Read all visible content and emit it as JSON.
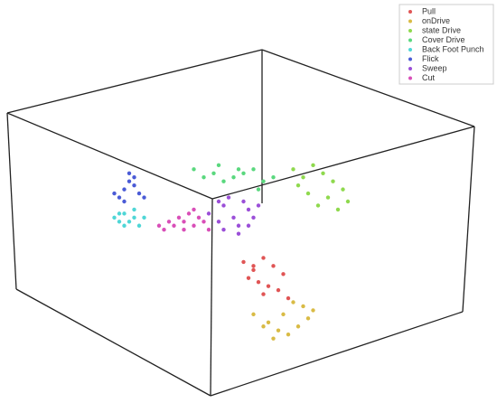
{
  "chart_data": {
    "type": "scatter3d",
    "xlim": [
      0,
      100
    ],
    "ylim": [
      0,
      100
    ],
    "legend": "top-right",
    "series": [
      {
        "name": "Pull",
        "color": "#e05555",
        "x": [
          49,
          51,
          53,
          55,
          57,
          52,
          54,
          50,
          56,
          58,
          53,
          51
        ],
        "y": [
          35,
          33,
          36,
          34,
          32,
          30,
          29,
          31,
          28,
          26,
          27,
          34
        ]
      },
      {
        "name": "onDrive",
        "color": "#d9bb45",
        "x": [
          51,
          53,
          56,
          58,
          60,
          62,
          63,
          59,
          55,
          57,
          61,
          54
        ],
        "y": [
          22,
          19,
          18,
          17,
          19,
          21,
          23,
          25,
          16,
          22,
          24,
          20
        ]
      },
      {
        "name": "state Drive",
        "color": "#8fd94e",
        "x": [
          59,
          61,
          63,
          65,
          67,
          69,
          70,
          62,
          64,
          66,
          68,
          60
        ],
        "y": [
          58,
          56,
          59,
          57,
          55,
          53,
          50,
          52,
          49,
          51,
          48,
          54
        ]
      },
      {
        "name": "Cover Drive",
        "color": "#5ad87e",
        "x": [
          39,
          41,
          43,
          45,
          47,
          49,
          51,
          53,
          55,
          44,
          48,
          52
        ],
        "y": [
          58,
          56,
          57,
          55,
          56,
          57,
          58,
          55,
          56,
          59,
          58,
          53
        ]
      },
      {
        "name": "Back Foot Punch",
        "color": "#4fd6d6",
        "x": [
          23,
          24,
          25,
          26,
          27,
          28,
          29,
          25,
          27,
          24
        ],
        "y": [
          46,
          45,
          47,
          45,
          46,
          44,
          46,
          44,
          48,
          47
        ]
      },
      {
        "name": "Flick",
        "color": "#4a5bd6",
        "x": [
          23,
          24,
          25,
          26,
          27,
          28,
          29,
          25,
          27,
          26
        ],
        "y": [
          52,
          51,
          53,
          55,
          54,
          52,
          51,
          50,
          56,
          57
        ]
      },
      {
        "name": "Sweep",
        "color": "#9b4fd8",
        "x": [
          42,
          44,
          45,
          46,
          47,
          48,
          49,
          50,
          51,
          52,
          45,
          48,
          44,
          50
        ],
        "y": [
          47,
          45,
          49,
          51,
          46,
          44,
          50,
          48,
          46,
          49,
          43,
          42,
          50,
          44
        ]
      },
      {
        "name": "Cut",
        "color": "#d94fb8",
        "x": [
          32,
          33,
          34,
          35,
          36,
          37,
          38,
          39,
          40,
          41,
          42,
          37,
          39
        ],
        "y": [
          44,
          43,
          45,
          44,
          46,
          45,
          47,
          44,
          46,
          45,
          43,
          43,
          48
        ]
      }
    ]
  }
}
